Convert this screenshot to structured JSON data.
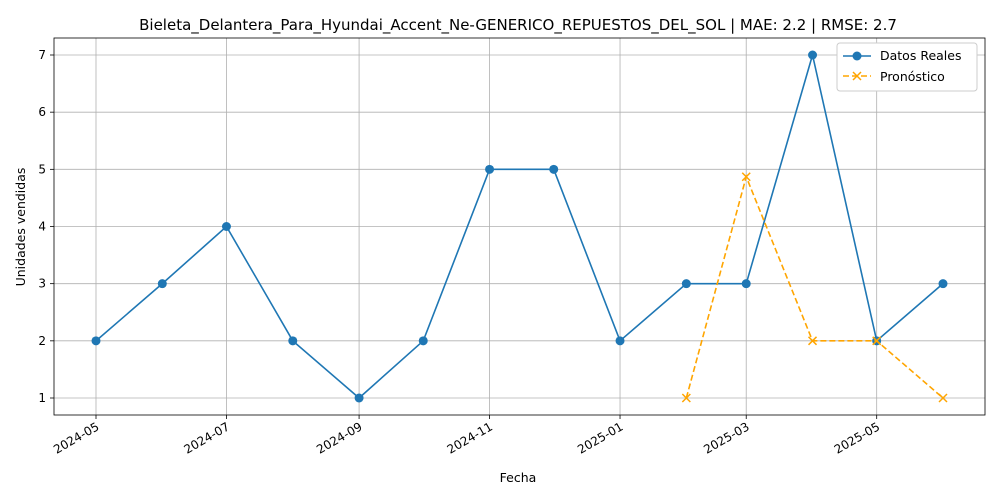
{
  "chart_data": {
    "type": "line",
    "title": "Bieleta_Delantera_Para_Hyundai_Accent_Ne-GENERICO_REPUESTOS_DEL_SOL | MAE: 2.2 | RMSE: 2.7",
    "xlabel": "Fecha",
    "ylabel": "Unidades vendidas",
    "x_ticks": [
      "2024-05",
      "2024-07",
      "2024-09",
      "2024-11",
      "2025-01",
      "2025-03",
      "2025-05"
    ],
    "y_ticks": [
      1,
      2,
      3,
      4,
      5,
      6,
      7
    ],
    "ylim": [
      0.7,
      7.3
    ],
    "grid": true,
    "legend_position": "top-right",
    "series": [
      {
        "name": "Datos Reales",
        "color": "#1f77b4",
        "style": "solid",
        "marker": "circle",
        "x": [
          "2024-05-01",
          "2024-06-01",
          "2024-07-01",
          "2024-08-01",
          "2024-09-01",
          "2024-10-01",
          "2024-11-01",
          "2024-12-01",
          "2025-01-01",
          "2025-02-01",
          "2025-03-01",
          "2025-04-01",
          "2025-05-01",
          "2025-06-01"
        ],
        "values": [
          2,
          3,
          4,
          2,
          1,
          2,
          5,
          5,
          2,
          3,
          3,
          7,
          2,
          3
        ]
      },
      {
        "name": "Pronóstico",
        "color": "#ffa500",
        "style": "dashed",
        "marker": "x",
        "x": [
          "2025-02-01",
          "2025-03-01",
          "2025-04-01",
          "2025-05-01",
          "2025-06-01"
        ],
        "values": [
          1.0,
          4.87,
          2.0,
          2.0,
          1.0
        ]
      }
    ]
  }
}
